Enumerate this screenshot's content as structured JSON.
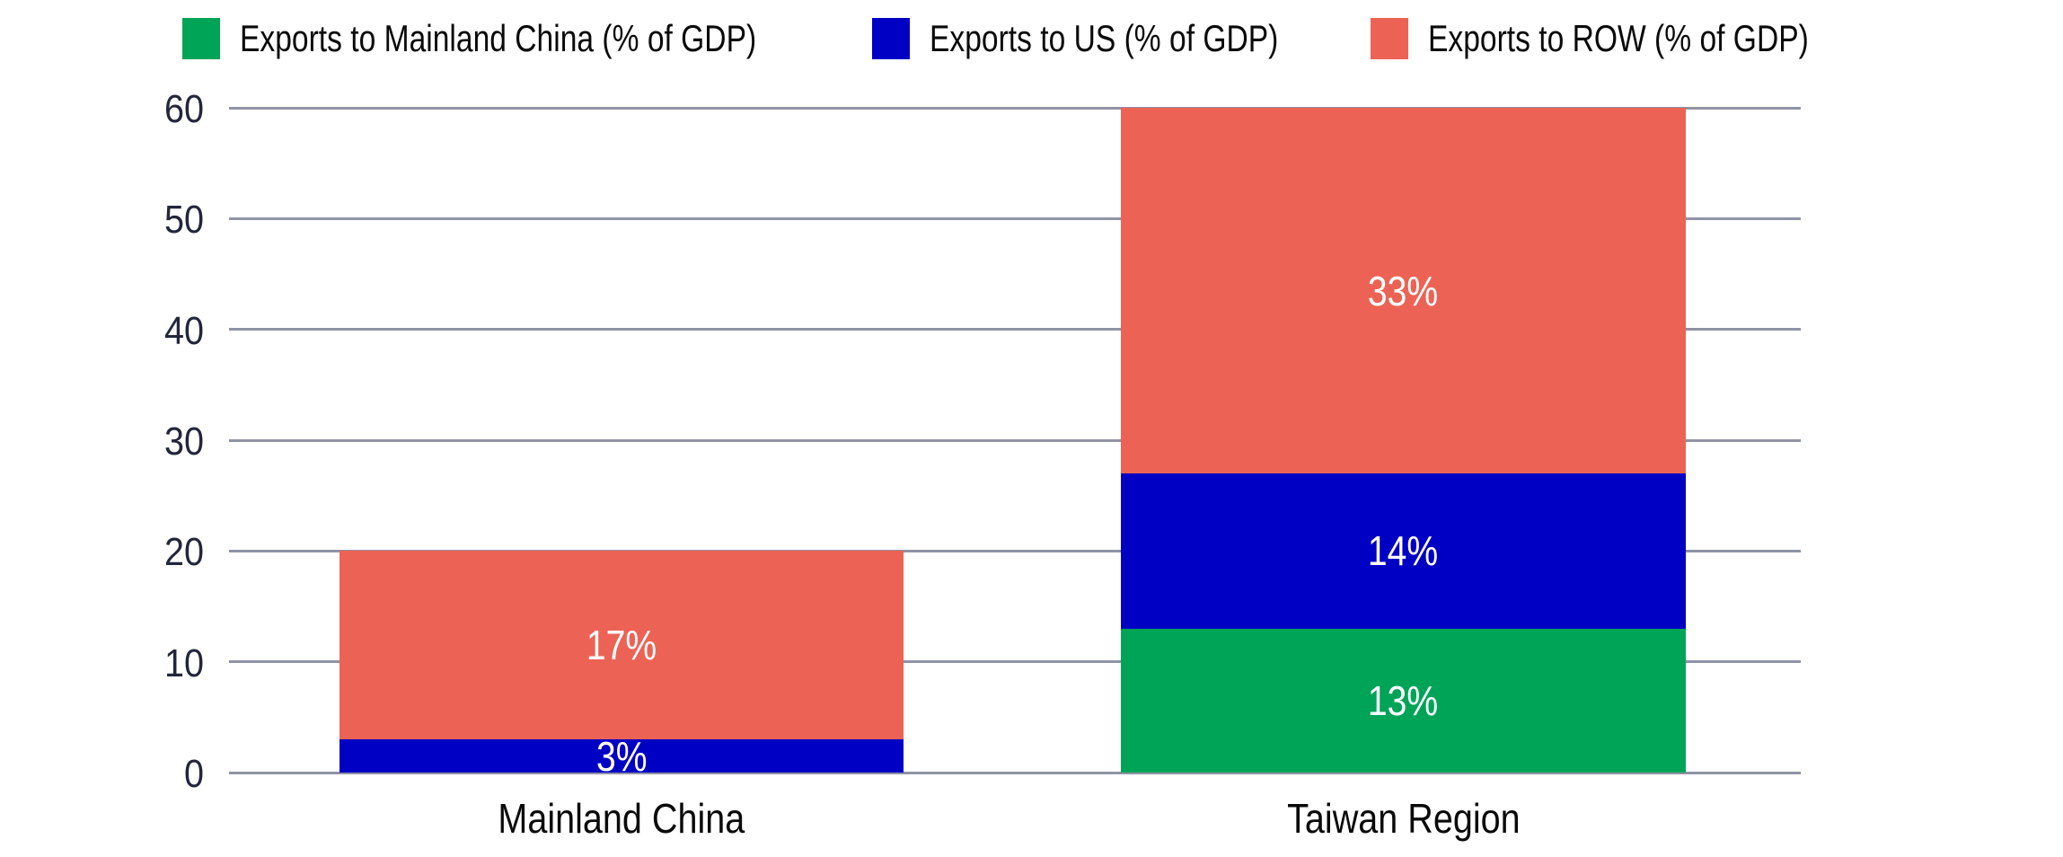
{
  "legend": {
    "position": "top",
    "items": [
      {
        "label": "Exports to Mainland China (% of GDP)",
        "color": "#00A457",
        "swatch": "green-swatch"
      },
      {
        "label": "Exports to US (% of GDP)",
        "color": "#0000C4",
        "swatch": "blue-swatch"
      },
      {
        "label": "Exports to ROW (% of GDP)",
        "color": "#EC6355",
        "swatch": "salmon-swatch"
      }
    ]
  },
  "chart_data": {
    "type": "bar",
    "stacked": true,
    "title": "",
    "xlabel": "",
    "ylabel": "",
    "categories": [
      "Mainland China",
      "Taiwan Region"
    ],
    "series": [
      {
        "name": "Exports to Mainland China (% of GDP)",
        "color": "#00A457",
        "values": [
          0,
          13
        ],
        "data_labels": [
          "",
          "13%"
        ]
      },
      {
        "name": "Exports to US (% of GDP)",
        "color": "#0000C4",
        "values": [
          3,
          14
        ],
        "data_labels": [
          "3%",
          "14%"
        ]
      },
      {
        "name": "Exports to ROW (% of GDP)",
        "color": "#EC6355",
        "values": [
          17,
          33
        ],
        "data_labels": [
          "17%",
          "33%"
        ]
      }
    ],
    "stack_totals": [
      20,
      60
    ],
    "y_axis": {
      "min": 0,
      "max": 60,
      "tick_step": 10,
      "ticks": [
        0,
        10,
        20,
        30,
        40,
        50,
        60
      ]
    },
    "grid": true,
    "gridline_color": "#9093A4",
    "tick_label_color": "#23263B",
    "data_label_color": "#FFFFFF",
    "legend_position": "top"
  },
  "layout_note": "white background, horizontal gridlines, two stacked bars"
}
